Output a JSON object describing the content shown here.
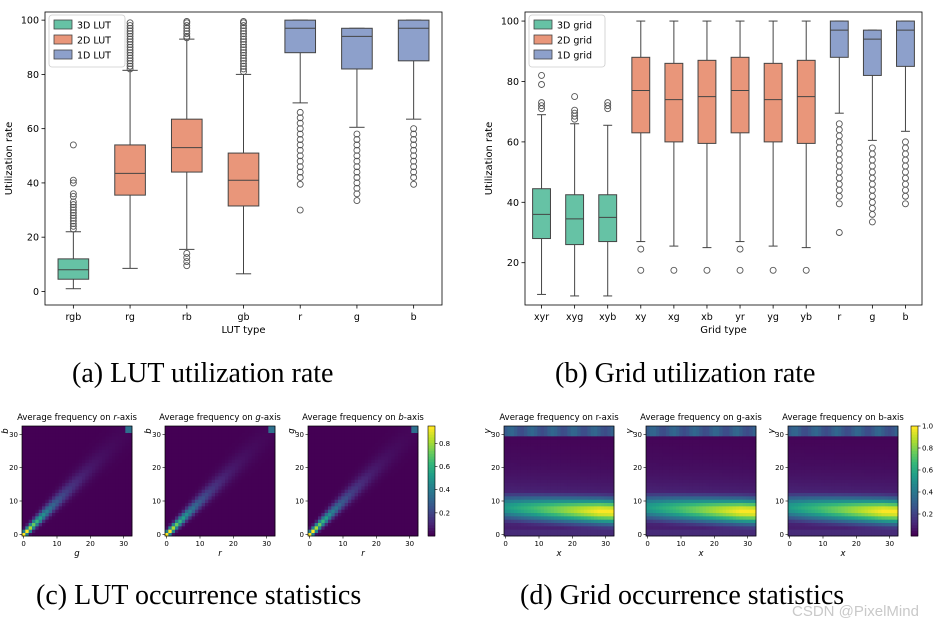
{
  "captions": {
    "a": "(a) LUT utilization rate",
    "b": "(b) Grid utilization rate",
    "c": "(c) LUT occurrence statistics",
    "d": "(d) Grid occurrence statistics"
  },
  "watermark": "CSDN @PixelMind",
  "colors": {
    "green": "#66c2a5",
    "orange": "#e9967a",
    "blue": "#8da0cb",
    "median": "#3d3d3d"
  },
  "chart_data": [
    {
      "id": "a",
      "type": "box",
      "xlabel": "LUT type",
      "ylabel": "Utilization rate",
      "ylim": [
        -5,
        103
      ],
      "yticks": [
        0,
        20,
        40,
        60,
        80,
        100
      ],
      "legend": {
        "position": "top-left",
        "entries": [
          {
            "label": "3D LUT",
            "color": "green"
          },
          {
            "label": "2D LUT",
            "color": "orange"
          },
          {
            "label": "1D LUT",
            "color": "blue"
          }
        ]
      },
      "boxes": [
        {
          "label": "rgb",
          "color": "green",
          "whislo": 1,
          "q1": 4.5,
          "med": 8,
          "q3": 12,
          "whishi": 22,
          "fliers": [
            23,
            24,
            25,
            26,
            27,
            28,
            29,
            30,
            31,
            32,
            33,
            35,
            36,
            40,
            41,
            54
          ]
        },
        {
          "label": "rg",
          "color": "orange",
          "whislo": 8.5,
          "q1": 35.5,
          "med": 43.5,
          "q3": 54,
          "whishi": 81.5,
          "fliers": [
            82,
            83,
            84,
            85,
            86,
            87,
            88,
            89,
            90,
            91,
            92,
            93,
            94,
            95,
            96,
            97,
            98,
            99
          ]
        },
        {
          "label": "rb",
          "color": "orange",
          "whislo": 15.5,
          "q1": 44,
          "med": 53,
          "q3": 63.5,
          "whishi": 93,
          "fliers": [
            9.5,
            11,
            12.5,
            14,
            93.5,
            94,
            95,
            96,
            97,
            98,
            99,
            99.5
          ]
        },
        {
          "label": "gb",
          "color": "orange",
          "whislo": 6.5,
          "q1": 31.5,
          "med": 41,
          "q3": 51,
          "whishi": 80,
          "fliers": [
            81,
            82,
            83,
            84,
            85,
            86,
            87,
            88,
            89,
            90,
            91,
            92,
            93,
            94,
            95,
            96,
            97,
            98,
            99,
            99.5
          ]
        },
        {
          "label": "r",
          "color": "blue",
          "whislo": 69.5,
          "q1": 88,
          "med": 97,
          "q3": 100,
          "whishi": 100,
          "fliers": [
            30,
            39.5,
            42,
            44,
            46,
            48,
            50,
            52,
            54,
            56,
            58,
            60,
            62,
            64,
            66
          ]
        },
        {
          "label": "g",
          "color": "blue",
          "whislo": 60.5,
          "q1": 82,
          "med": 94,
          "q3": 97,
          "whishi": 97,
          "fliers": [
            33.5,
            36,
            38,
            40,
            42,
            44,
            46,
            48,
            50,
            52,
            54,
            56,
            58
          ]
        },
        {
          "label": "b",
          "color": "blue",
          "whislo": 63.5,
          "q1": 85,
          "med": 97,
          "q3": 100,
          "whishi": 100,
          "fliers": [
            39.5,
            42,
            44,
            46,
            48,
            50,
            52,
            54,
            56,
            58,
            60
          ]
        }
      ]
    },
    {
      "id": "b",
      "type": "box",
      "xlabel": "Grid type",
      "ylabel": "Utilization rate",
      "ylim": [
        6,
        103
      ],
      "yticks": [
        20,
        40,
        60,
        80,
        100
      ],
      "legend": {
        "position": "top-left",
        "entries": [
          {
            "label": "3D grid",
            "color": "green"
          },
          {
            "label": "2D grid",
            "color": "orange"
          },
          {
            "label": "1D grid",
            "color": "blue"
          }
        ]
      },
      "boxes": [
        {
          "label": "xyr",
          "color": "green",
          "whislo": 9.5,
          "q1": 28,
          "med": 36,
          "q3": 44.5,
          "whishi": 69,
          "fliers": [
            71,
            72,
            73,
            79,
            82
          ]
        },
        {
          "label": "xyg",
          "color": "green",
          "whislo": 9,
          "q1": 26,
          "med": 34.5,
          "q3": 42.5,
          "whishi": 66,
          "fliers": [
            67.5,
            68.5,
            69.5,
            70.5,
            75
          ]
        },
        {
          "label": "xyb",
          "color": "green",
          "whislo": 9,
          "q1": 27,
          "med": 35,
          "q3": 42.5,
          "whishi": 65.5,
          "fliers": [
            71,
            72,
            73
          ]
        },
        {
          "label": "xy",
          "color": "orange",
          "whislo": 27,
          "q1": 63,
          "med": 77,
          "q3": 88,
          "whishi": 100,
          "fliers": [
            17.5,
            24.5
          ]
        },
        {
          "label": "xg",
          "color": "orange",
          "whislo": 25.5,
          "q1": 60,
          "med": 74,
          "q3": 86,
          "whishi": 100,
          "fliers": [
            17.5
          ]
        },
        {
          "label": "xb",
          "color": "orange",
          "whislo": 25,
          "q1": 59.5,
          "med": 75,
          "q3": 87,
          "whishi": 100,
          "fliers": [
            17.5
          ]
        },
        {
          "label": "yr",
          "color": "orange",
          "whislo": 27,
          "q1": 63,
          "med": 77,
          "q3": 88,
          "whishi": 100,
          "fliers": [
            17.5,
            24.5
          ]
        },
        {
          "label": "yg",
          "color": "orange",
          "whislo": 25.5,
          "q1": 60,
          "med": 74,
          "q3": 86,
          "whishi": 100,
          "fliers": [
            17.5
          ]
        },
        {
          "label": "yb",
          "color": "orange",
          "whislo": 25,
          "q1": 59.5,
          "med": 75,
          "q3": 87,
          "whishi": 100,
          "fliers": [
            17.5
          ]
        },
        {
          "label": "r",
          "color": "blue",
          "whislo": 69.5,
          "q1": 88,
          "med": 97,
          "q3": 100,
          "whishi": 100,
          "fliers": [
            30,
            39.5,
            42,
            44,
            46,
            48,
            50,
            52,
            54,
            56,
            58,
            60,
            62,
            64,
            66
          ]
        },
        {
          "label": "g",
          "color": "blue",
          "whislo": 60.5,
          "q1": 82,
          "med": 94,
          "q3": 97,
          "whishi": 97,
          "fliers": [
            33.5,
            36,
            38,
            40,
            42,
            44,
            46,
            48,
            50,
            52,
            54,
            56,
            58
          ]
        },
        {
          "label": "b",
          "color": "blue",
          "whislo": 63.5,
          "q1": 85,
          "med": 97,
          "q3": 100,
          "whishi": 100,
          "fliers": [
            39.5,
            42,
            44,
            46,
            48,
            50,
            52,
            54,
            56,
            58,
            60
          ]
        }
      ]
    },
    {
      "id": "c",
      "type": "heatmap",
      "pattern": "diagonal",
      "xlim": [
        0,
        33
      ],
      "ylim": [
        0,
        33
      ],
      "xticks": [
        0,
        10,
        20,
        30
      ],
      "yticks": [
        0,
        10,
        20,
        30
      ],
      "colorbar": {
        "ticks": [
          0.2,
          0.4,
          0.6,
          0.8
        ],
        "range": [
          0,
          0.95
        ]
      },
      "panels": [
        {
          "title": "Average frequency on r-axis",
          "title_pre": "Average frequency on ",
          "title_var": "r",
          "title_post": "-axis",
          "xlabel": "g",
          "ylabel": "b"
        },
        {
          "title": "Average frequency on g-axis",
          "title_pre": "Average frequency on ",
          "title_var": "g",
          "title_post": "-axis",
          "xlabel": "r",
          "ylabel": "b"
        },
        {
          "title": "Average frequency on b-axis",
          "title_pre": "Average frequency on ",
          "title_var": "b",
          "title_post": "-axis",
          "xlabel": "r",
          "ylabel": "g"
        }
      ]
    },
    {
      "id": "d",
      "type": "heatmap",
      "pattern": "band",
      "xlim": [
        0,
        33
      ],
      "ylim": [
        0,
        33
      ],
      "xticks": [
        0,
        10,
        20,
        30
      ],
      "yticks": [
        0,
        10,
        20,
        30
      ],
      "colorbar": {
        "ticks": [
          0.2,
          0.4,
          0.6,
          0.8,
          1.0
        ],
        "tick_labels": [
          "0.2",
          "0.4",
          "0.6",
          "0.8",
          "1.0"
        ],
        "range": [
          0,
          1.0
        ]
      },
      "panels": [
        {
          "title": "Average frequency on r-axis",
          "title_pre": "Average frequency on r-axis",
          "title_var": "",
          "title_post": "",
          "xlabel": "x",
          "ylabel": "y"
        },
        {
          "title": "Average frequency on g-axis",
          "title_pre": "Average frequency on g-axis",
          "title_var": "",
          "title_post": "",
          "xlabel": "x",
          "ylabel": "y"
        },
        {
          "title": "Average frequency on b-axis",
          "title_pre": "Average frequency on b-axis",
          "title_var": "",
          "title_post": "",
          "xlabel": "x",
          "ylabel": "y"
        }
      ]
    }
  ]
}
